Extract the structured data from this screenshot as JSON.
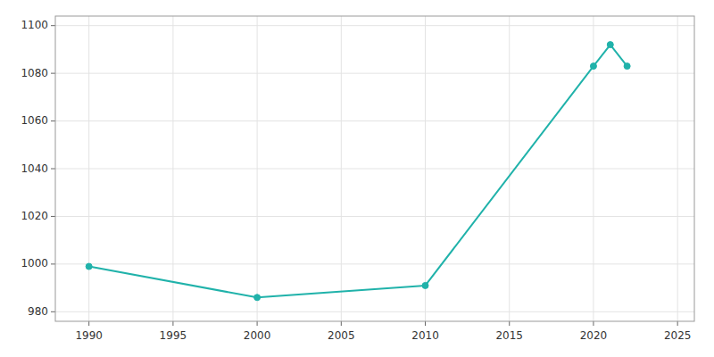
{
  "chart_data": {
    "type": "line",
    "x": [
      1990,
      2000,
      2010,
      2020,
      2021,
      2022
    ],
    "values": [
      999,
      986,
      991,
      1083,
      1092,
      1083
    ],
    "color": "#20B2AA",
    "marker": "circle",
    "xlim": [
      1988,
      2026
    ],
    "xticks": [
      1990,
      1995,
      2000,
      2005,
      2010,
      2015,
      2020,
      2025
    ],
    "ylim": [
      976,
      1104
    ],
    "yticks": [
      980,
      1000,
      1020,
      1040,
      1060,
      1080,
      1100
    ],
    "grid": true
  }
}
